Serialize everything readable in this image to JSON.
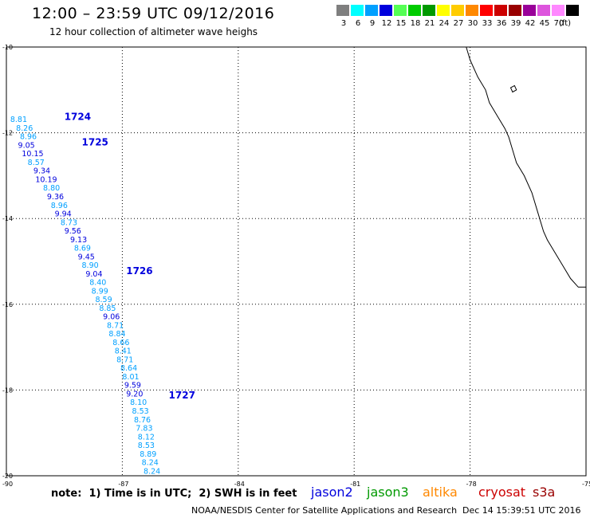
{
  "header": {
    "title": "12:00 – 23:59 UTC 09/12/2016",
    "subtitle": "12 hour collection of altimeter wave heighs"
  },
  "legend": {
    "bins": [
      {
        "label": "3",
        "color": "#7f7f7f"
      },
      {
        "label": "6",
        "color": "#00ffff"
      },
      {
        "label": "9",
        "color": "#00a0ff"
      },
      {
        "label": "12",
        "color": "#0000dd"
      },
      {
        "label": "15",
        "color": "#55ff55"
      },
      {
        "label": "18",
        "color": "#00cc00"
      },
      {
        "label": "21",
        "color": "#009900"
      },
      {
        "label": "24",
        "color": "#ffff00"
      },
      {
        "label": "27",
        "color": "#ffcc00"
      },
      {
        "label": "30",
        "color": "#ff8800"
      },
      {
        "label": "33",
        "color": "#ff0000"
      },
      {
        "label": "36",
        "color": "#cc0000"
      },
      {
        "label": "39",
        "color": "#990000"
      },
      {
        "label": "42",
        "color": "#990099"
      },
      {
        "label": "45",
        "color": "#dd55dd"
      },
      {
        "label": "70",
        "color": "#ff88ff"
      },
      {
        "label": "",
        "color": "#000000"
      }
    ],
    "unit": "(ft)"
  },
  "map": {
    "lat_range": [
      -20,
      -10
    ],
    "lon_range": [
      -90,
      -75
    ],
    "lat_ticks": [
      {
        "value": -10,
        "label": "-10"
      },
      {
        "value": -12,
        "label": "-12"
      },
      {
        "value": -14,
        "label": "-14"
      },
      {
        "value": -16,
        "label": "-16"
      },
      {
        "value": -18,
        "label": "-18"
      },
      {
        "value": -20,
        "label": "-20"
      }
    ],
    "lon_ticks": [
      {
        "value": -90,
        "label": "-90"
      },
      {
        "value": -87,
        "label": "-87"
      },
      {
        "value": -84,
        "label": "-84"
      },
      {
        "value": -81,
        "label": "-81"
      },
      {
        "value": -78,
        "label": "-78"
      },
      {
        "value": -75,
        "label": "-75"
      }
    ],
    "coast": [
      [
        -78.1,
        -10.0
      ],
      [
        -78.0,
        -10.3
      ],
      [
        -77.8,
        -10.7
      ],
      [
        -77.6,
        -11.0
      ],
      [
        -77.5,
        -11.3
      ],
      [
        -77.3,
        -11.6
      ],
      [
        -77.1,
        -11.9
      ],
      [
        -77.0,
        -12.1
      ],
      [
        -76.9,
        -12.4
      ],
      [
        -76.8,
        -12.7
      ],
      [
        -76.6,
        -13.0
      ],
      [
        -76.4,
        -13.4
      ],
      [
        -76.3,
        -13.7
      ],
      [
        -76.2,
        -14.0
      ],
      [
        -76.1,
        -14.3
      ],
      [
        -76.0,
        -14.5
      ],
      [
        -75.8,
        -14.8
      ],
      [
        -75.6,
        -15.1
      ],
      [
        -75.4,
        -15.4
      ],
      [
        -75.2,
        -15.6
      ],
      [
        -75.0,
        -15.6
      ]
    ],
    "island": [
      [
        -76.95,
        -10.95
      ],
      [
        -76.85,
        -10.9
      ],
      [
        -76.8,
        -11.0
      ],
      [
        -76.9,
        -11.05
      ]
    ],
    "passes": [
      {
        "label": "1724",
        "lon": -88.5,
        "lat": -11.7
      },
      {
        "label": "1725",
        "lon": -88.05,
        "lat": -12.3
      },
      {
        "label": "1726",
        "lon": -86.9,
        "lat": -15.3
      },
      {
        "label": "1727",
        "lon": -85.8,
        "lat": -18.2
      }
    ],
    "obs": [
      {
        "v": "8.81",
        "lon": -89.9,
        "lat": -11.75,
        "c": "#00a0ff"
      },
      {
        "v": "8.26",
        "lon": -89.75,
        "lat": -11.95,
        "c": "#00a0ff"
      },
      {
        "v": "8.96",
        "lon": -89.65,
        "lat": -12.15,
        "c": "#00a0ff"
      },
      {
        "v": "9.05",
        "lon": -89.7,
        "lat": -12.35,
        "c": "#0000dd"
      },
      {
        "v": "10.15",
        "lon": -89.6,
        "lat": -12.55,
        "c": "#0000dd"
      },
      {
        "v": "8.57",
        "lon": -89.45,
        "lat": -12.75,
        "c": "#00a0ff"
      },
      {
        "v": "9.34",
        "lon": -89.3,
        "lat": -12.95,
        "c": "#0000dd"
      },
      {
        "v": "10.19",
        "lon": -89.25,
        "lat": -13.15,
        "c": "#0000dd"
      },
      {
        "v": "8.80",
        "lon": -89.05,
        "lat": -13.35,
        "c": "#00a0ff"
      },
      {
        "v": "9.36",
        "lon": -88.95,
        "lat": -13.55,
        "c": "#0000dd"
      },
      {
        "v": "8.96",
        "lon": -88.85,
        "lat": -13.75,
        "c": "#00a0ff"
      },
      {
        "v": "9.94",
        "lon": -88.75,
        "lat": -13.95,
        "c": "#0000dd"
      },
      {
        "v": "8.73",
        "lon": -88.6,
        "lat": -14.15,
        "c": "#00a0ff"
      },
      {
        "v": "9.56",
        "lon": -88.5,
        "lat": -14.35,
        "c": "#0000dd"
      },
      {
        "v": "9.13",
        "lon": -88.35,
        "lat": -14.55,
        "c": "#0000dd"
      },
      {
        "v": "8.69",
        "lon": -88.25,
        "lat": -14.75,
        "c": "#00a0ff"
      },
      {
        "v": "9.45",
        "lon": -88.15,
        "lat": -14.95,
        "c": "#0000dd"
      },
      {
        "v": "8.90",
        "lon": -88.05,
        "lat": -15.15,
        "c": "#00a0ff"
      },
      {
        "v": "9.04",
        "lon": -87.95,
        "lat": -15.35,
        "c": "#0000dd"
      },
      {
        "v": "8.40",
        "lon": -87.85,
        "lat": -15.55,
        "c": "#00a0ff"
      },
      {
        "v": "8.99",
        "lon": -87.8,
        "lat": -15.75,
        "c": "#00a0ff"
      },
      {
        "v": "8.59",
        "lon": -87.7,
        "lat": -15.95,
        "c": "#00a0ff"
      },
      {
        "v": "8.85",
        "lon": -87.6,
        "lat": -16.15,
        "c": "#00a0ff"
      },
      {
        "v": "9.06",
        "lon": -87.5,
        "lat": -16.35,
        "c": "#0000dd"
      },
      {
        "v": "8.71",
        "lon": -87.4,
        "lat": -16.55,
        "c": "#00a0ff"
      },
      {
        "v": "8.84",
        "lon": -87.35,
        "lat": -16.75,
        "c": "#00a0ff"
      },
      {
        "v": "8.66",
        "lon": -87.25,
        "lat": -16.95,
        "c": "#00a0ff"
      },
      {
        "v": "8.41",
        "lon": -87.2,
        "lat": -17.15,
        "c": "#00a0ff"
      },
      {
        "v": "8.71",
        "lon": -87.15,
        "lat": -17.35,
        "c": "#00a0ff"
      },
      {
        "v": "8.64",
        "lon": -87.05,
        "lat": -17.55,
        "c": "#00a0ff"
      },
      {
        "v": "8.01",
        "lon": -87.0,
        "lat": -17.75,
        "c": "#00a0ff"
      },
      {
        "v": "9.59",
        "lon": -86.95,
        "lat": -17.95,
        "c": "#0000dd"
      },
      {
        "v": "9.20",
        "lon": -86.9,
        "lat": -18.15,
        "c": "#0000dd"
      },
      {
        "v": "8.10",
        "lon": -86.8,
        "lat": -18.35,
        "c": "#00a0ff"
      },
      {
        "v": "8.53",
        "lon": -86.75,
        "lat": -18.55,
        "c": "#00a0ff"
      },
      {
        "v": "8.76",
        "lon": -86.7,
        "lat": -18.75,
        "c": "#00a0ff"
      },
      {
        "v": "7.83",
        "lon": -86.65,
        "lat": -18.95,
        "c": "#00a0ff"
      },
      {
        "v": "8.12",
        "lon": -86.6,
        "lat": -19.15,
        "c": "#00a0ff"
      },
      {
        "v": "8.53",
        "lon": -86.6,
        "lat": -19.35,
        "c": "#00a0ff"
      },
      {
        "v": "8.89",
        "lon": -86.55,
        "lat": -19.55,
        "c": "#00a0ff"
      },
      {
        "v": "8.24",
        "lon": -86.5,
        "lat": -19.75,
        "c": "#00a0ff"
      },
      {
        "v": "8.24",
        "lon": -86.45,
        "lat": -19.95,
        "c": "#00a0ff"
      }
    ]
  },
  "footer": {
    "note": "note:  1) Time is in UTC;  2) SWH is in feet",
    "satellites": [
      {
        "name": "jason2",
        "color": "#0000dd"
      },
      {
        "name": "jason3",
        "color": "#009900"
      },
      {
        "name": "altika",
        "color": "#ff8800"
      },
      {
        "name": "cryosat",
        "color": "#cc0000"
      },
      {
        "name": "s3a",
        "color": "#990000"
      }
    ],
    "credit": "NOAA/NESDIS Center for Satellite Applications and Research",
    "timestamp": "Dec 14 15:39:51 UTC 2016"
  }
}
